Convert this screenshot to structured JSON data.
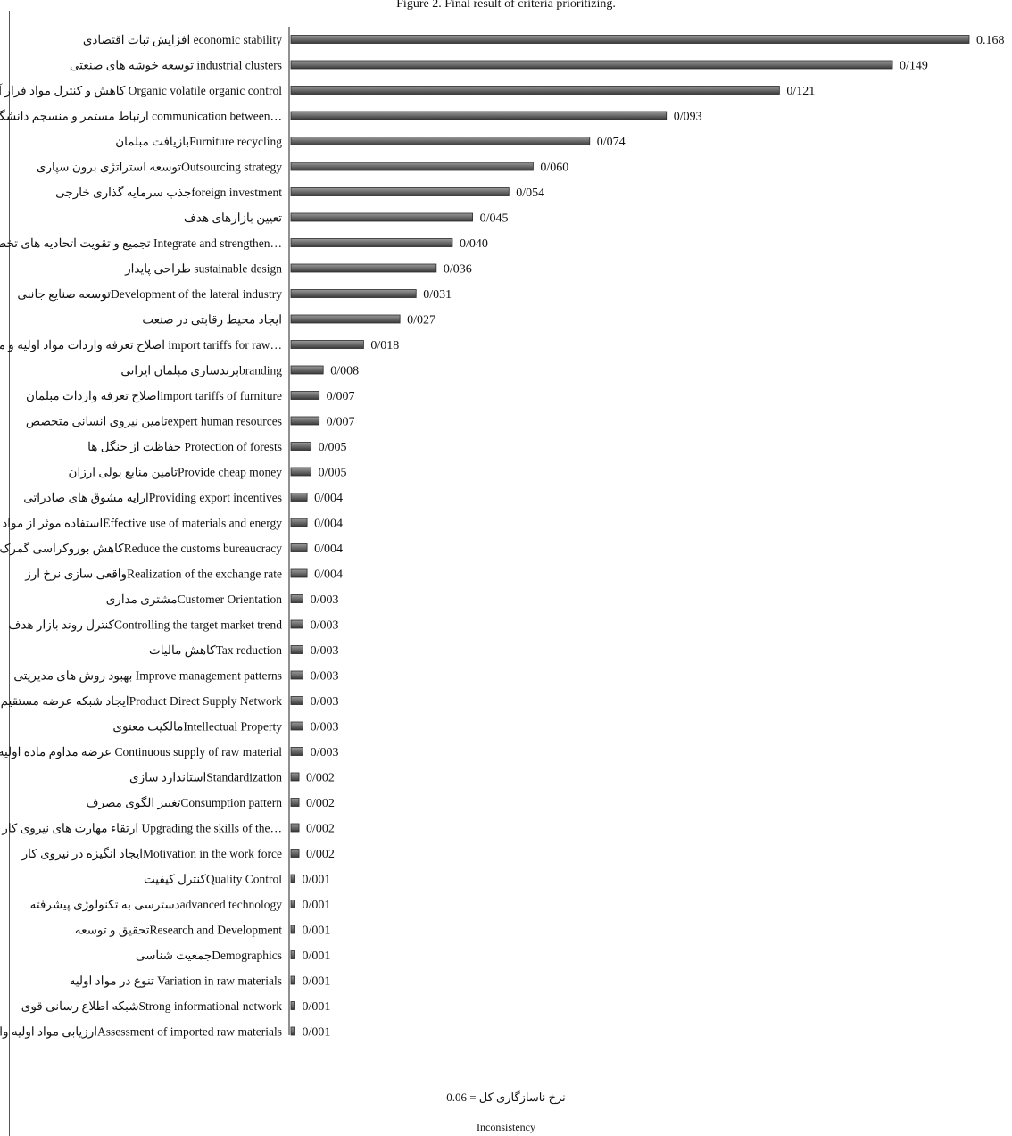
{
  "chart_data": {
    "type": "bar",
    "orientation": "horizontal",
    "title": "Figure 2. Final result of criteria prioritizing.",
    "categories": [
      "افزایش ثبات اقتصادی economic stability",
      "توسعه خوشه های صنعتی industrial clusters",
      "کاهش و کنترل مواد فرار آلی Organic volatile organic  control",
      "ارتباط مستمر و منسجم دانشگاه و صنعت communication between…",
      "بازیافت مبلمانFurniture recycling",
      "توسعه استراتژی برون سپاریOutsourcing strategy",
      "جذب سرمایه گذاری خارجیforeign investment",
      "تعیین بازارهای هدف",
      "تجمیع و تقویت اتحادیه های تخصصی  Integrate and strengthen…",
      "طراحی پایدار sustainable design",
      "توسعه صنایع جانبیDevelopment of the lateral industry",
      "ایجاد محیط رقابتی در صنعت",
      "اصلاح تعرفه واردات مواد اولیه و ماشین آلات import tariffs for raw…",
      "برندسازی مبلمان ایرانیbranding",
      "اصلاح تعرفه واردات مبلمانimport tariffs of furniture",
      "تامین نیروی انسانی متخصصexpert human resources",
      "حفاظت از جنگل ها  Protection of forests",
      "تامین منابع پولی ارزانProvide cheap money",
      "ارایه مشوق های صادراتیProviding export incentives",
      "استفاده موثر از مواد و انرژیEffective use of materials and energy",
      "کاهش بوروکراسی گمرکReduce the customs bureaucracy",
      "واقعی سازی نرخ ارزRealization of the exchange rate",
      "مشتری مداریCustomer Orientation",
      "کنترل روند بازار هدفControlling the target market trend",
      "کاهش مالیاتTax reduction",
      "بهبود روش های مدیریتی Improve management patterns",
      "ایجاد شبکه عرضه مستقیم محصولProduct Direct Supply Network",
      "مالکیت معنویIntellectual Property",
      "عرضه مداوم ماده اولیه Continuous supply of raw material",
      "استاندارد سازیStandardization",
      "تغییر الگوی مصرفConsumption pattern",
      "ارتقاء مهارت های نیروی کار Upgrading the skills of the…",
      "ایجاد انگیزه در نیروی کارMotivation in the work force",
      "کنترل کیفیتQuality Control",
      "دسترسی به تکنولوژی پیشرفتهadvanced technology",
      "تحقیق و توسعهResearch and Development",
      "جمعیت شناسیDemographics",
      "تنوع در مواد اولیه Variation in raw materials",
      "شبکه اطلاع رسانی قویStrong informational network",
      "ارزیابی مواد اولیه وارداتیAssessment  of imported raw materials"
    ],
    "values": [
      0.168,
      0.149,
      0.121,
      0.093,
      0.074,
      0.06,
      0.054,
      0.045,
      0.04,
      0.036,
      0.031,
      0.027,
      0.018,
      0.008,
      0.007,
      0.007,
      0.005,
      0.005,
      0.004,
      0.004,
      0.004,
      0.004,
      0.003,
      0.003,
      0.003,
      0.003,
      0.003,
      0.003,
      0.003,
      0.002,
      0.002,
      0.002,
      0.002,
      0.001,
      0.001,
      0.001,
      0.001,
      0.001,
      0.001,
      0.001
    ],
    "value_labels": [
      "0.168",
      "0/149",
      "0/121",
      "0/093",
      "0/074",
      "0/060",
      "0/054",
      "0/045",
      "0/040",
      "0/036",
      "0/031",
      "0/027",
      "0/018",
      "0/008",
      "0/007",
      "0/007",
      "0/005",
      "0/005",
      "0/004",
      "0/004",
      "0/004",
      "0/004",
      "0/003",
      "0/003",
      "0/003",
      "0/003",
      "0/003",
      "0/003",
      "0/003",
      "0/002",
      "0/002",
      "0/002",
      "0/002",
      "0/001",
      "0/001",
      "0/001",
      "0/001",
      "0/001",
      "0/001",
      "0/001"
    ],
    "xlim": [
      0,
      0.168
    ],
    "grid": false,
    "legend": "none",
    "bar_color": "#707070"
  },
  "footer": {
    "note": "نرخ ناسازگاری کل = 0.06",
    "label": "Inconsistency"
  }
}
